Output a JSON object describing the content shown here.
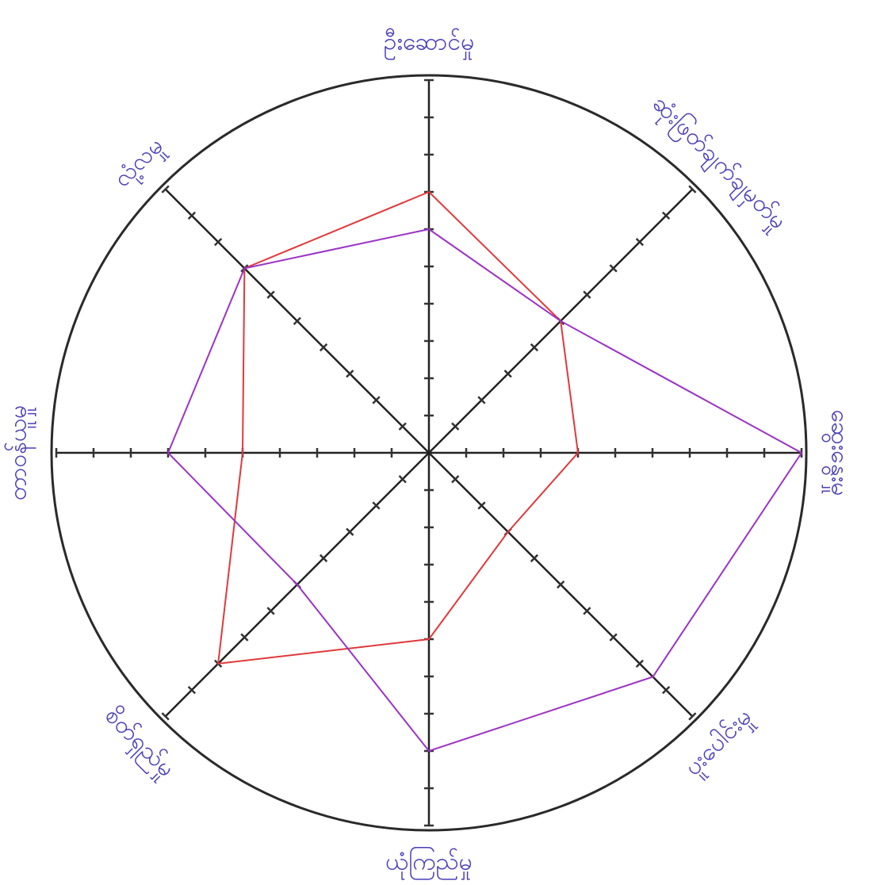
{
  "chart_data": {
    "type": "radar",
    "categories": [
      "ဦးဆောင်မှု",
      "ဆုံးဖြတ်ချက်ချမှတ်မှု",
      "ဆွေးနွေးမှု",
      "ပူးပေါင်းမှု",
      "ယုံကြည်မှု",
      "စိတ်ရှည်မှု",
      "တာဝန်ယူမှု",
      "လုံ့လမှု"
    ],
    "series": [
      {
        "color": "#e0393b",
        "values": [
          7,
          5,
          4,
          3,
          5,
          8,
          5,
          7
        ]
      },
      {
        "color": "#9b33c4",
        "values": [
          6,
          5,
          10,
          8.5,
          8,
          5,
          7,
          7
        ]
      }
    ],
    "rlim": [
      0,
      10
    ],
    "rticks": [
      1,
      2,
      3,
      4,
      5,
      6,
      7,
      8,
      9,
      10
    ]
  }
}
